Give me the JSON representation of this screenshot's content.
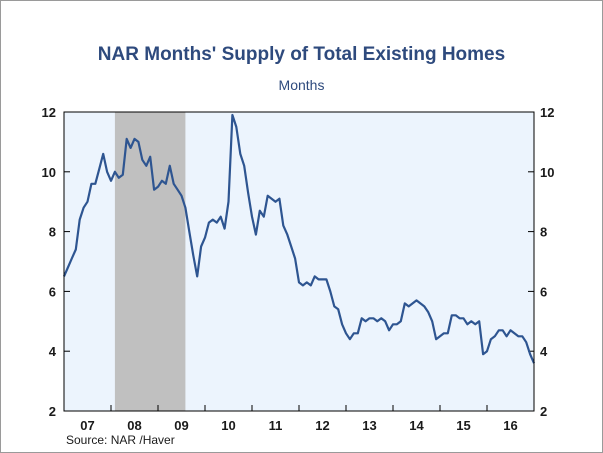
{
  "title": "NAR Months' Supply of Total Existing Homes",
  "subtitle": "Months",
  "source": "Source:  NAR /Haver",
  "colors": {
    "line": "#2e5591",
    "plot_bg": "#ecf4fd",
    "recession": "#c0c0c0",
    "title": "#2e4a7d"
  },
  "chart_data": {
    "type": "line",
    "title": "NAR Months' Supply of Total Existing Homes",
    "subtitle": "Months",
    "xlabel": "",
    "ylabel": "Months",
    "ylim": [
      2,
      12
    ],
    "yticks": [
      2,
      4,
      6,
      8,
      10,
      12
    ],
    "y_axes": "left and right",
    "grid": false,
    "x_tick_labels": [
      "07",
      "08",
      "09",
      "10",
      "11",
      "12",
      "13",
      "14",
      "15",
      "16"
    ],
    "x_range": [
      2006.917,
      2016.917
    ],
    "recession_shading": [
      2008.0,
      2009.5
    ],
    "series": [
      {
        "x": [
          2006.917,
          2007.0,
          2007.083,
          2007.167,
          2007.25,
          2007.333,
          2007.417,
          2007.5,
          2007.583,
          2007.667,
          2007.75,
          2007.833,
          2007.917,
          2008.0,
          2008.083,
          2008.167,
          2008.25,
          2008.333,
          2008.417,
          2008.5,
          2008.583,
          2008.667,
          2008.75,
          2008.833,
          2008.917,
          2009.0,
          2009.083,
          2009.167,
          2009.25,
          2009.333,
          2009.417,
          2009.5,
          2009.583,
          2009.667,
          2009.75,
          2009.833,
          2009.917,
          2010.0,
          2010.083,
          2010.167,
          2010.25,
          2010.333,
          2010.417,
          2010.5,
          2010.583,
          2010.667,
          2010.75,
          2010.833,
          2010.917,
          2011.0,
          2011.083,
          2011.167,
          2011.25,
          2011.333,
          2011.417,
          2011.5,
          2011.583,
          2011.667,
          2011.75,
          2011.833,
          2011.917,
          2012.0,
          2012.083,
          2012.167,
          2012.25,
          2012.333,
          2012.417,
          2012.5,
          2012.583,
          2012.667,
          2012.75,
          2012.833,
          2012.917,
          2013.0,
          2013.083,
          2013.167,
          2013.25,
          2013.333,
          2013.417,
          2013.5,
          2013.583,
          2013.667,
          2013.75,
          2013.833,
          2013.917,
          2014.0,
          2014.083,
          2014.167,
          2014.25,
          2014.333,
          2014.417,
          2014.5,
          2014.583,
          2014.667,
          2014.75,
          2014.833,
          2014.917,
          2015.0,
          2015.083,
          2015.167,
          2015.25,
          2015.333,
          2015.417,
          2015.5,
          2015.583,
          2015.667,
          2015.75,
          2015.833,
          2015.917,
          2016.0,
          2016.083,
          2016.167,
          2016.25,
          2016.333,
          2016.417,
          2016.5,
          2016.583,
          2016.667,
          2016.75,
          2016.833,
          2016.917
        ],
        "values": [
          6.5,
          6.8,
          7.1,
          7.4,
          8.4,
          8.8,
          9.0,
          9.6,
          9.6,
          10.1,
          10.6,
          10.0,
          9.7,
          10.0,
          9.8,
          9.9,
          11.1,
          10.8,
          11.1,
          11.0,
          10.4,
          10.2,
          10.5,
          9.4,
          9.5,
          9.7,
          9.6,
          10.2,
          9.6,
          9.4,
          9.2,
          8.8,
          8.0,
          7.2,
          6.5,
          7.5,
          7.8,
          8.3,
          8.4,
          8.3,
          8.5,
          8.1,
          9.0,
          11.9,
          11.5,
          10.6,
          10.2,
          9.3,
          8.5,
          7.9,
          8.7,
          8.5,
          9.2,
          9.1,
          9.0,
          9.1,
          8.2,
          7.9,
          7.5,
          7.1,
          6.3,
          6.2,
          6.3,
          6.2,
          6.5,
          6.4,
          6.4,
          6.4,
          6.0,
          5.5,
          5.4,
          4.9,
          4.6,
          4.4,
          4.6,
          4.6,
          5.1,
          5.0,
          5.1,
          5.1,
          5.0,
          5.1,
          5.0,
          4.7,
          4.9,
          4.9,
          5.0,
          5.6,
          5.5,
          5.6,
          5.7,
          5.6,
          5.5,
          5.3,
          5.0,
          4.4,
          4.5,
          4.6,
          4.6,
          5.2,
          5.2,
          5.1,
          5.1,
          4.9,
          5.0,
          4.9,
          5.0,
          3.9,
          4.0,
          4.4,
          4.5,
          4.7,
          4.7,
          4.5,
          4.7,
          4.6,
          4.5,
          4.5,
          4.3,
          3.9,
          3.6
        ]
      }
    ]
  }
}
